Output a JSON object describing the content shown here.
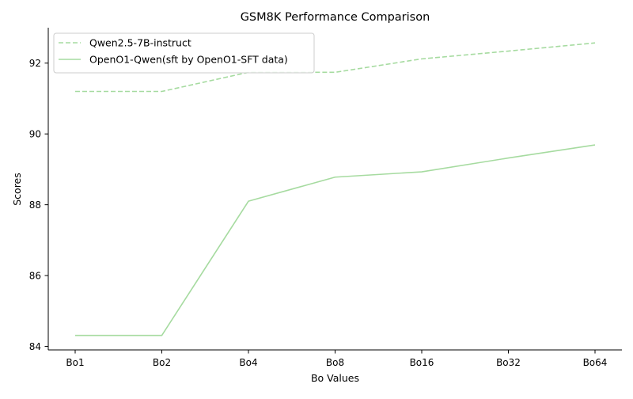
{
  "chart_data": {
    "type": "line",
    "title": "GSM8K Performance Comparison",
    "xlabel": "Bo Values",
    "ylabel": "Scores",
    "categories": [
      "Bo1",
      "Bo2",
      "Bo4",
      "Bo8",
      "Bo16",
      "Bo32",
      "Bo64"
    ],
    "ylim": [
      83.9,
      93.0
    ],
    "yticks": [
      84,
      86,
      88,
      90,
      92
    ],
    "grid": false,
    "legend_position": "top-left",
    "series": [
      {
        "name": "Qwen2.5-7B-instruct",
        "values": [
          91.2,
          91.2,
          91.74,
          91.74,
          92.12,
          92.34,
          92.57
        ],
        "color": "#a6dba0",
        "style": "dashed"
      },
      {
        "name": "OpenO1-Qwen(sft by OpenO1-SFT data)",
        "values": [
          84.31,
          84.31,
          88.1,
          88.78,
          88.93,
          89.32,
          89.69
        ],
        "color": "#a6dba0",
        "style": "solid"
      }
    ]
  }
}
